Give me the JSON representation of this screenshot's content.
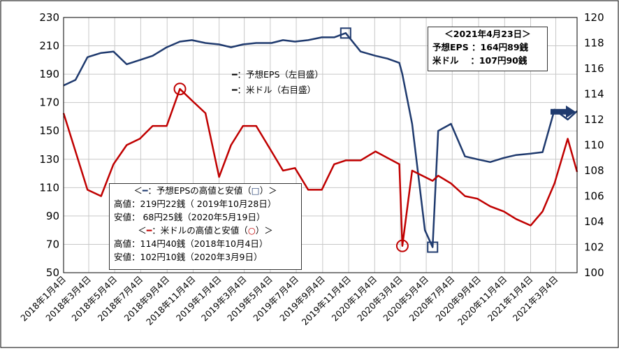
{
  "chart_data": {
    "type": "line",
    "x_dates": [
      "2018-01-04",
      "2018-02-01",
      "2018-03-01",
      "2018-04-02",
      "2018-05-01",
      "2018-06-01",
      "2018-07-02",
      "2018-08-01",
      "2018-09-03",
      "2018-10-04",
      "2018-11-01",
      "2018-12-03",
      "2019-01-04",
      "2019-02-01",
      "2019-03-01",
      "2019-04-01",
      "2019-05-07",
      "2019-06-03",
      "2019-07-01",
      "2019-08-01",
      "2019-09-02",
      "2019-10-01",
      "2019-10-28",
      "2019-12-02",
      "2020-01-06",
      "2020-02-03",
      "2020-03-02",
      "2020-03-09",
      "2020-04-01",
      "2020-05-01",
      "2020-05-19",
      "2020-06-01",
      "2020-07-01",
      "2020-08-03",
      "2020-09-01",
      "2020-10-01",
      "2020-11-02",
      "2020-12-01",
      "2021-01-04",
      "2021-02-01",
      "2021-03-01",
      "2021-04-01",
      "2021-04-23"
    ],
    "x_tick_labels": [
      "2018年1月4日",
      "2018年3月4日",
      "2018年5月4日",
      "2018年7月4日",
      "2018年9月4日",
      "2018年11月4日",
      "2019年1月4日",
      "2019年3月4日",
      "2019年5月4日",
      "2019年7月4日",
      "2019年9月4日",
      "2019年11月4日",
      "2020年1月4日",
      "2020年3月4日",
      "2020年5月4日",
      "2020年7月4日",
      "2020年9月4日",
      "2020年11月4日",
      "2021年1月4日",
      "2021年3月4日"
    ],
    "y_left_ticks": [
      "230",
      "210",
      "190",
      "170",
      "150",
      "130",
      "110",
      "90",
      "70",
      "50"
    ],
    "y_right_ticks": [
      "120",
      "118",
      "116",
      "114",
      "112",
      "110",
      "108",
      "106",
      "104",
      "102",
      "100"
    ],
    "ylim_left": [
      50,
      230
    ],
    "ylim_right": [
      100,
      120
    ],
    "series": [
      {
        "name": "予想EPS（左目盛）",
        "axis": "left",
        "color": "#1f3a6e",
        "values": [
          182,
          186,
          202,
          205,
          206,
          197,
          200,
          203,
          209,
          213,
          214,
          212,
          211,
          209,
          211,
          212,
          212,
          214,
          213,
          214,
          216,
          216,
          219,
          206,
          203,
          201,
          198,
          190,
          155,
          80,
          68,
          150,
          155,
          132,
          130,
          128,
          131,
          133,
          134,
          135,
          165,
          158,
          164
        ]
      },
      {
        "name": "米ドル（右目盛）",
        "axis": "right",
        "color": "#c00000",
        "values": [
          112.5,
          109.5,
          106.5,
          106,
          108.5,
          110,
          110.5,
          111.5,
          111.5,
          114.4,
          113.5,
          112.5,
          107.5,
          110,
          111.5,
          111.5,
          109.5,
          108,
          108.2,
          106.5,
          106.5,
          108.5,
          108.8,
          108.8,
          109.5,
          109,
          108.5,
          102.1,
          108,
          107.5,
          107.2,
          107.6,
          107,
          106,
          105.8,
          105.2,
          104.8,
          104.2,
          103.7,
          104.8,
          107,
          110.5,
          107.9
        ]
      }
    ],
    "grid": true
  },
  "legend": {
    "eps": "━：予想EPS（左目盛）",
    "usd": "━：米ドル（右目盛）"
  },
  "note_top_right": {
    "title": "＜2021年4月23日＞",
    "line1": "予想EPS ：164円89銭",
    "line2": "米ドル 　：107円90銭"
  },
  "note_low": {
    "eps_header_prefix": "＜",
    "eps_header_line": "━",
    "eps_header_text": "：予想EPSの高値と安値（",
    "eps_header_box": "□",
    "eps_header_suffix": "）＞",
    "eps_high": "高値：219円22銭（ 2019年10月28日）",
    "eps_low": "安値： 68円25銭（2020年5月19日）",
    "usd_header_prefix": "＜",
    "usd_header_line": "━",
    "usd_header_text": "：米ドルの高値と安値（",
    "usd_header_circle": "○",
    "usd_header_suffix": "）＞",
    "usd_high": "高値：114円40銭（2018年10月4日）",
    "usd_low": "安値：102円10銭（2020年3月9日）"
  },
  "colors": {
    "eps": "#1f3a6e",
    "usd": "#c00000",
    "grid": "#c8c8c8",
    "frame": "#000000"
  }
}
